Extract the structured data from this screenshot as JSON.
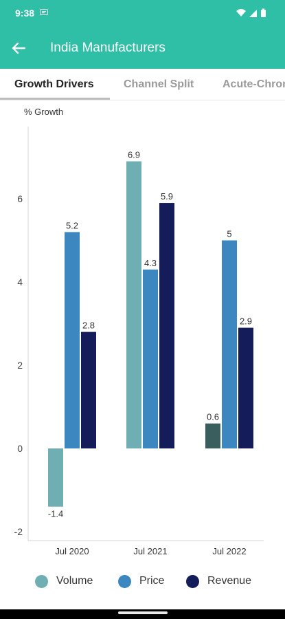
{
  "status_bar": {
    "time": "9:38",
    "icons": [
      "busy-notification-icon",
      "wifi-icon",
      "signal-icon",
      "battery-icon"
    ]
  },
  "app_bar": {
    "title": "India Manufacturers",
    "back_icon": "arrow-back-icon",
    "background": "#2fbfa6"
  },
  "tabs": [
    {
      "label": "Growth Drivers",
      "active": true
    },
    {
      "label": "Channel Split",
      "active": false
    },
    {
      "label": "Acute-Chron",
      "active": false
    }
  ],
  "legend": [
    {
      "label": "Volume",
      "color": "#6fafb3"
    },
    {
      "label": "Price",
      "color": "#3d87c0"
    },
    {
      "label": "Revenue",
      "color": "#141c5a"
    }
  ],
  "chart_data": {
    "type": "bar",
    "ylabel": "% Growth",
    "categories": [
      "Jul 2020",
      "Jul 2021",
      "Jul 2022"
    ],
    "series": [
      {
        "name": "Volume",
        "values": [
          -1.4,
          6.9,
          0.6
        ],
        "color": "#6fafb3"
      },
      {
        "name": "Price",
        "values": [
          5.2,
          4.3,
          5
        ],
        "color": "#3d87c0"
      },
      {
        "name": "Revenue",
        "values": [
          2.8,
          5.9,
          2.9
        ],
        "color": "#141c5a"
      }
    ],
    "highlight": {
      "series": "Volume",
      "index": 2,
      "color": "#3a5e5e"
    },
    "yticks": [
      -2,
      0,
      2,
      4,
      6
    ],
    "ylim": [
      -2,
      7.5
    ],
    "data_labels": true,
    "grid": false,
    "legend_position": "bottom"
  }
}
